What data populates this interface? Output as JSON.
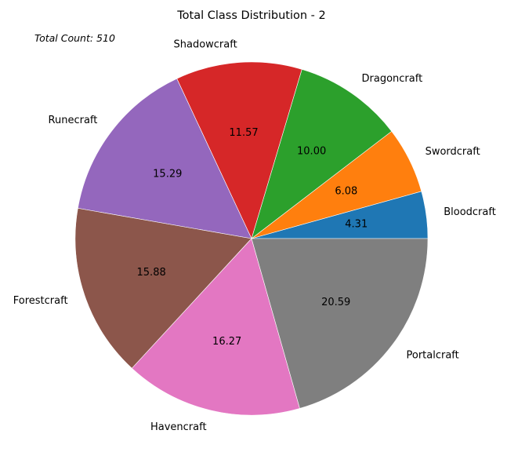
{
  "chart_data": {
    "type": "pie",
    "title": "Total Class Distribution - 2",
    "annotation": "Total Count: 510",
    "start_angle_deg": 0,
    "direction": "counterclockwise",
    "legend": "none",
    "slices": [
      {
        "label": "Bloodcraft",
        "value": 4.31,
        "pct_label": "4.31",
        "color": "#1f77b4"
      },
      {
        "label": "Swordcraft",
        "value": 6.08,
        "pct_label": "6.08",
        "color": "#ff7f0e"
      },
      {
        "label": "Dragoncraft",
        "value": 10.0,
        "pct_label": "10.00",
        "color": "#2ca02c"
      },
      {
        "label": "Shadowcraft",
        "value": 11.57,
        "pct_label": "11.57",
        "color": "#d62728"
      },
      {
        "label": "Runecraft",
        "value": 15.29,
        "pct_label": "15.29",
        "color": "#9467bd"
      },
      {
        "label": "Forestcraft",
        "value": 15.88,
        "pct_label": "15.88",
        "color": "#8c564b"
      },
      {
        "label": "Havencraft",
        "value": 16.27,
        "pct_label": "16.27",
        "color": "#e377c2"
      },
      {
        "label": "Portalcraft",
        "value": 20.59,
        "pct_label": "20.59",
        "color": "#7f7f7f"
      }
    ]
  }
}
